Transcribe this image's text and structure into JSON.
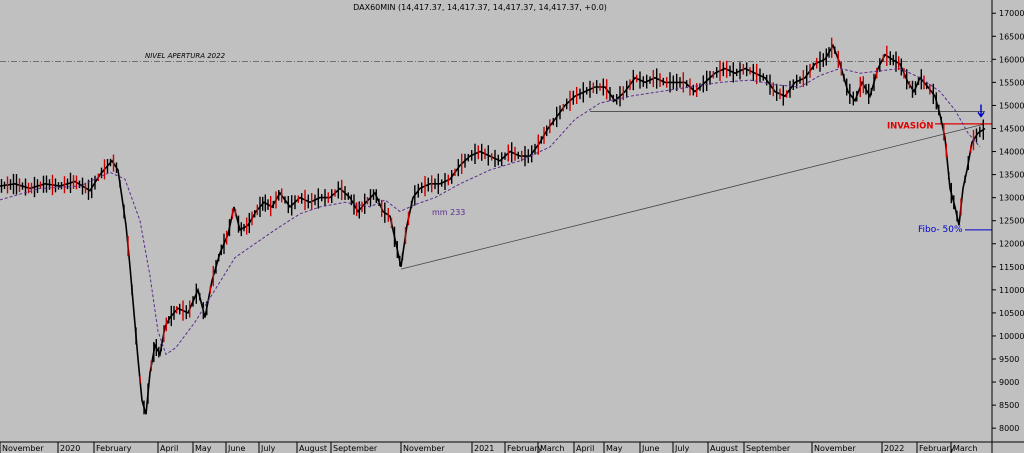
{
  "chart_data": {
    "type": "line",
    "title": "DAX60MIN (14,417.37, 14,417.37, 14,417.37, 14,417.37, +0.0)",
    "ylim": [
      7700,
      17200
    ],
    "yticks": [
      8000,
      8500,
      9000,
      9500,
      10000,
      10500,
      11000,
      11500,
      12000,
      12500,
      13000,
      13500,
      14000,
      14500,
      15000,
      15500,
      16000,
      16500,
      17000
    ],
    "grid": false,
    "xlabels": [
      "November",
      "2020",
      "February",
      "April",
      "May",
      "June",
      "July",
      "August",
      "September",
      "November",
      "2021",
      "February",
      "March",
      "April",
      "May",
      "June",
      "July",
      "August",
      "September",
      "November",
      "2022",
      "February",
      "March"
    ],
    "series": [
      {
        "name": "DAX60MIN",
        "color": "#000000",
        "points": [
          [
            0,
            13250
          ],
          [
            15,
            13300
          ],
          [
            30,
            13200
          ],
          [
            45,
            13300
          ],
          [
            60,
            13250
          ],
          [
            75,
            13350
          ],
          [
            90,
            13150
          ],
          [
            100,
            13500
          ],
          [
            112,
            13800
          ],
          [
            118,
            13600
          ],
          [
            122,
            13000
          ],
          [
            126,
            12400
          ],
          [
            130,
            11500
          ],
          [
            134,
            10500
          ],
          [
            138,
            9500
          ],
          [
            142,
            8600
          ],
          [
            146,
            8300
          ],
          [
            150,
            9200
          ],
          [
            155,
            9800
          ],
          [
            160,
            9600
          ],
          [
            165,
            10200
          ],
          [
            170,
            10400
          ],
          [
            178,
            10600
          ],
          [
            188,
            10500
          ],
          [
            198,
            11000
          ],
          [
            205,
            10400
          ],
          [
            212,
            11200
          ],
          [
            220,
            11800
          ],
          [
            228,
            12200
          ],
          [
            234,
            12800
          ],
          [
            240,
            12300
          ],
          [
            248,
            12400
          ],
          [
            256,
            12700
          ],
          [
            264,
            12900
          ],
          [
            272,
            12800
          ],
          [
            280,
            13100
          ],
          [
            290,
            12800
          ],
          [
            300,
            13000
          ],
          [
            310,
            12900
          ],
          [
            320,
            13000
          ],
          [
            330,
            13000
          ],
          [
            340,
            13200
          ],
          [
            350,
            13000
          ],
          [
            358,
            12700
          ],
          [
            366,
            12900
          ],
          [
            375,
            13100
          ],
          [
            383,
            12700
          ],
          [
            390,
            12600
          ],
          [
            396,
            12000
          ],
          [
            401,
            11500
          ],
          [
            407,
            12400
          ],
          [
            413,
            13000
          ],
          [
            420,
            13200
          ],
          [
            430,
            13300
          ],
          [
            440,
            13300
          ],
          [
            450,
            13400
          ],
          [
            460,
            13700
          ],
          [
            470,
            13900
          ],
          [
            480,
            14000
          ],
          [
            490,
            13900
          ],
          [
            500,
            13800
          ],
          [
            510,
            14000
          ],
          [
            520,
            13900
          ],
          [
            530,
            13900
          ],
          [
            540,
            14200
          ],
          [
            548,
            14500
          ],
          [
            555,
            14700
          ],
          [
            565,
            15000
          ],
          [
            575,
            15200
          ],
          [
            585,
            15300
          ],
          [
            595,
            15400
          ],
          [
            605,
            15400
          ],
          [
            615,
            15100
          ],
          [
            625,
            15300
          ],
          [
            635,
            15600
          ],
          [
            645,
            15500
          ],
          [
            655,
            15600
          ],
          [
            665,
            15500
          ],
          [
            675,
            15500
          ],
          [
            685,
            15500
          ],
          [
            695,
            15300
          ],
          [
            705,
            15500
          ],
          [
            715,
            15700
          ],
          [
            725,
            15800
          ],
          [
            735,
            15700
          ],
          [
            745,
            15800
          ],
          [
            755,
            15700
          ],
          [
            765,
            15600
          ],
          [
            775,
            15300
          ],
          [
            785,
            15200
          ],
          [
            795,
            15500
          ],
          [
            805,
            15600
          ],
          [
            815,
            15900
          ],
          [
            825,
            16000
          ],
          [
            833,
            16300
          ],
          [
            840,
            15900
          ],
          [
            848,
            15300
          ],
          [
            855,
            15100
          ],
          [
            862,
            15500
          ],
          [
            870,
            15200
          ],
          [
            878,
            15800
          ],
          [
            885,
            16100
          ],
          [
            892,
            16000
          ],
          [
            900,
            15900
          ],
          [
            908,
            15500
          ],
          [
            914,
            15300
          ],
          [
            920,
            15600
          ],
          [
            928,
            15400
          ],
          [
            935,
            15200
          ],
          [
            940,
            14800
          ],
          [
            945,
            14300
          ],
          [
            950,
            13200
          ],
          [
            955,
            12800
          ],
          [
            959,
            12400
          ],
          [
            963,
            13200
          ],
          [
            967,
            13600
          ],
          [
            972,
            14200
          ],
          [
            978,
            14400
          ],
          [
            985,
            14500
          ]
        ]
      },
      {
        "name": "mm 233",
        "color": "#5a2d8c",
        "points": [
          [
            0,
            12950
          ],
          [
            40,
            13200
          ],
          [
            80,
            13250
          ],
          [
            110,
            13550
          ],
          [
            125,
            13400
          ],
          [
            140,
            12500
          ],
          [
            150,
            11300
          ],
          [
            158,
            10100
          ],
          [
            166,
            9600
          ],
          [
            176,
            9750
          ],
          [
            195,
            10300
          ],
          [
            215,
            11000
          ],
          [
            235,
            11700
          ],
          [
            255,
            12000
          ],
          [
            275,
            12300
          ],
          [
            300,
            12650
          ],
          [
            320,
            12800
          ],
          [
            345,
            12900
          ],
          [
            370,
            12800
          ],
          [
            385,
            12950
          ],
          [
            400,
            12700
          ],
          [
            415,
            12850
          ],
          [
            435,
            13000
          ],
          [
            460,
            13300
          ],
          [
            490,
            13600
          ],
          [
            520,
            13800
          ],
          [
            550,
            14100
          ],
          [
            575,
            14700
          ],
          [
            600,
            15050
          ],
          [
            630,
            15200
          ],
          [
            660,
            15300
          ],
          [
            690,
            15400
          ],
          [
            720,
            15500
          ],
          [
            750,
            15550
          ],
          [
            775,
            15450
          ],
          [
            800,
            15400
          ],
          [
            820,
            15650
          ],
          [
            840,
            15800
          ],
          [
            860,
            15700
          ],
          [
            880,
            15750
          ],
          [
            900,
            15800
          ],
          [
            920,
            15600
          ],
          [
            940,
            15300
          ],
          [
            955,
            14900
          ],
          [
            968,
            14400
          ],
          [
            980,
            14100
          ]
        ]
      }
    ],
    "annotations": {
      "nivel": "NIVEL APERTURA 2022",
      "mm_label": "mm 233",
      "invasion": "INVASIÓN",
      "fibo": "Fibo- 50%"
    }
  }
}
